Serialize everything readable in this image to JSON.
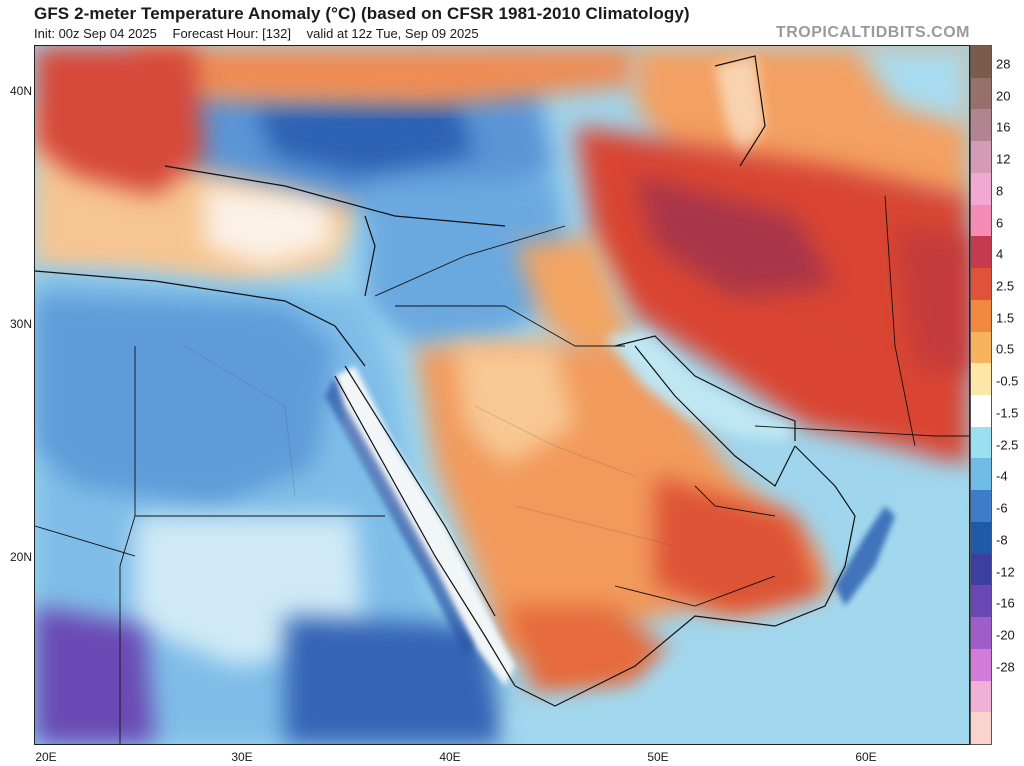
{
  "header": {
    "title": "GFS 2-meter Temperature Anomaly (°C) (based on CFSR 1981-2010 Climatology)",
    "init": "Init: 00z Sep 04 2025",
    "forecast_hour": "Forecast Hour: [132]",
    "valid": "valid at 12z Tue, Sep 09 2025",
    "watermark": "TROPICALTIDBITS.COM"
  },
  "map": {
    "lat_labels": [
      "40N",
      "30N",
      "20N"
    ],
    "lat_values": [
      40,
      30,
      20
    ],
    "lon_labels": [
      "20E",
      "30E",
      "40E",
      "50E",
      "60E"
    ],
    "lon_values": [
      20,
      30,
      40,
      50,
      60
    ],
    "extent": {
      "lon_min": 20,
      "lon_max": 65,
      "lat_min": 12,
      "lat_max": 42
    },
    "colors": {
      "warm_ocean": "#f7c98a",
      "cool_ocean": "#a7dcf2",
      "sea_white": "#f4f6f4",
      "cold_land": "#3d7dc8",
      "very_cold": "#6a48b4",
      "hot_land": "#d8432e",
      "very_hot": "#a8343e",
      "warm_land": "#ef8a4a"
    }
  },
  "colorbar": {
    "labels": [
      "28",
      "20",
      "16",
      "12",
      "8",
      "6",
      "4",
      "2.5",
      "1.5",
      "0.5",
      "-0.5",
      "-1.5",
      "-2.5",
      "-4",
      "-6",
      "-8",
      "-12",
      "-16",
      "-20",
      "-28"
    ],
    "colors": [
      "#7a5c4a",
      "#96706a",
      "#b08490",
      "#d59ab6",
      "#f2a8d4",
      "#f58cb8",
      "#c53a4f",
      "#e0523a",
      "#f2873f",
      "#f8b35e",
      "#fde7a8",
      "#ffffff",
      "#9cdff0",
      "#6fbde6",
      "#3d7dc8",
      "#1f5aa8",
      "#3b3f9e",
      "#6a48b4",
      "#a05cc8",
      "#d27bd8",
      "#f0b0d8",
      "#f8d4cc"
    ]
  }
}
